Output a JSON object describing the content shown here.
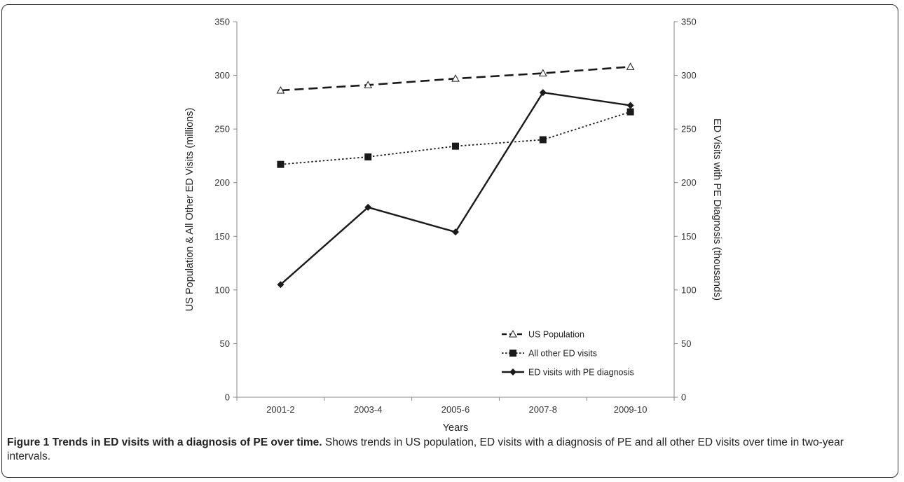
{
  "chart_data": {
    "type": "line",
    "categories": [
      "2001-2",
      "2003-4",
      "2005-6",
      "2007-8",
      "2009-10"
    ],
    "xlabel": "Years",
    "ylabel_left": "US Population & All Other ED Visits (millions)",
    "ylabel_right": "ED Visits with PE Diagnosis (thousands)",
    "ylim_left": [
      0,
      350
    ],
    "ylim_right": [
      0,
      350
    ],
    "yticks": [
      0,
      50,
      100,
      150,
      200,
      250,
      300,
      350
    ],
    "grid": false,
    "legend_position": "bottom-right",
    "series": [
      {
        "name": "US Population",
        "axis": "left",
        "style": "dashed",
        "marker": "open-triangle",
        "color": "#1a1a1a",
        "values": [
          286,
          291,
          297,
          302,
          308
        ]
      },
      {
        "name": "All other ED visits",
        "axis": "left",
        "style": "dotted",
        "marker": "filled-square",
        "color": "#1a1a1a",
        "values": [
          217,
          224,
          234,
          240,
          266
        ]
      },
      {
        "name": "ED visits with PE diagnosis",
        "axis": "right",
        "style": "solid",
        "marker": "filled-diamond",
        "color": "#1a1a1a",
        "values": [
          105,
          177,
          154,
          284,
          272
        ]
      }
    ]
  },
  "caption": {
    "title": "Figure 1 Trends in ED visits with a diagnosis of PE over time.",
    "text": " Shows trends in US population, ED visits with a diagnosis of PE and all other ED visits over time in two-year intervals."
  }
}
